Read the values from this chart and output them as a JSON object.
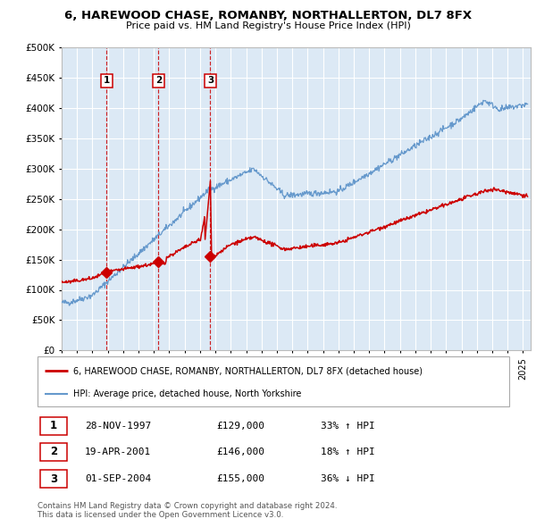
{
  "title": "6, HAREWOOD CHASE, ROMANBY, NORTHALLERTON, DL7 8FX",
  "subtitle": "Price paid vs. HM Land Registry's House Price Index (HPI)",
  "bg_color": "#dce9f5",
  "grid_color": "#ffffff",
  "ylim": [
    0,
    500000
  ],
  "yticks": [
    0,
    50000,
    100000,
    150000,
    200000,
    250000,
    300000,
    350000,
    400000,
    450000,
    500000
  ],
  "xlim_start": 1995.0,
  "xlim_end": 2025.5,
  "sale_dates": [
    1997.91,
    2001.3,
    2004.67
  ],
  "sale_prices": [
    129000,
    146000,
    155000
  ],
  "sale_labels": [
    "1",
    "2",
    "3"
  ],
  "red_line_color": "#cc0000",
  "blue_line_color": "#6699cc",
  "marker_color": "#cc0000",
  "vline_color": "#cc0000",
  "transactions": [
    {
      "num": "1",
      "date": "28-NOV-1997",
      "price": "£129,000",
      "hpi": "33% ↑ HPI"
    },
    {
      "num": "2",
      "date": "19-APR-2001",
      "price": "£146,000",
      "hpi": "18% ↑ HPI"
    },
    {
      "num": "3",
      "date": "01-SEP-2004",
      "price": "£155,000",
      "hpi": "36% ↓ HPI"
    }
  ],
  "legend_line1": "6, HAREWOOD CHASE, ROMANBY, NORTHALLERTON, DL7 8FX (detached house)",
  "legend_line2": "HPI: Average price, detached house, North Yorkshire",
  "footer1": "Contains HM Land Registry data © Crown copyright and database right 2024.",
  "footer2": "This data is licensed under the Open Government Licence v3.0."
}
